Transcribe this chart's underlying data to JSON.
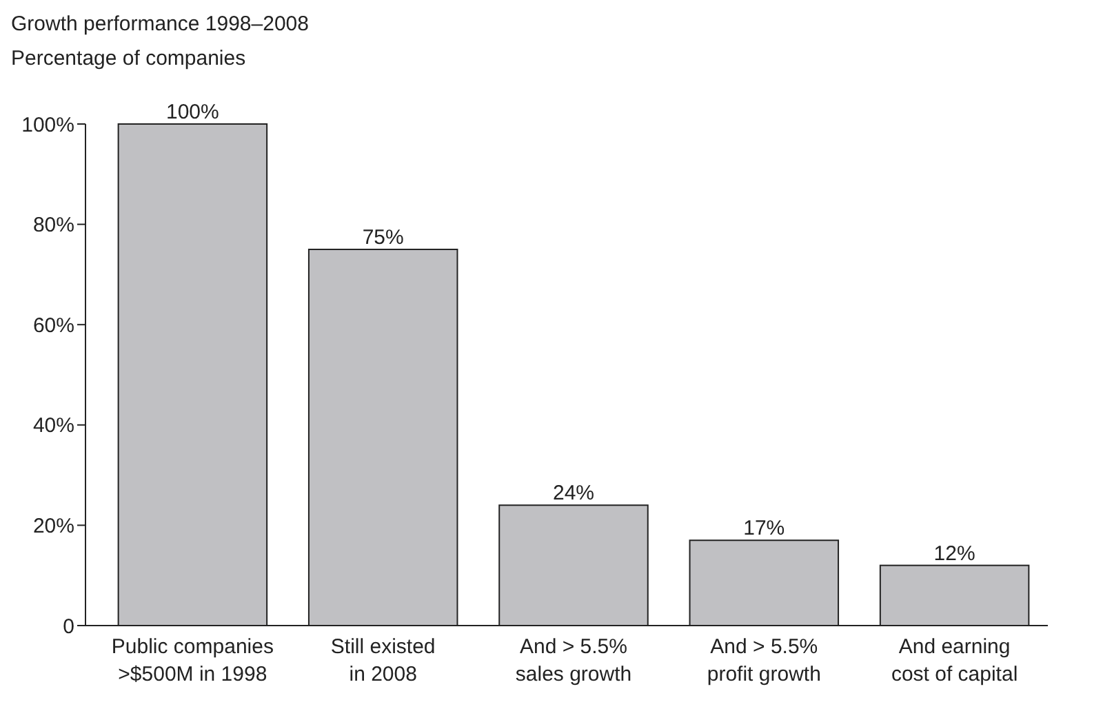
{
  "chart_data": {
    "type": "bar",
    "title": "Growth performance 1998–2008",
    "subtitle": "Percentage of companies",
    "categories": [
      "Public companies\n>$500M in 1998",
      "Still existed\nin 2008",
      "And > 5.5%\nsales growth",
      "And > 5.5%\nprofit growth",
      "And earning\ncost of capital"
    ],
    "values": [
      100,
      75,
      24,
      17,
      12
    ],
    "value_labels": [
      "100%",
      "75%",
      "24%",
      "17%",
      "12%"
    ],
    "color": "#c0c0c3",
    "ylim": [
      0,
      100
    ],
    "yticks": [
      0,
      {
        "value": 20,
        "label": "20%"
      },
      {
        "value": 40,
        "label": "40%"
      },
      {
        "value": 60,
        "label": "60%"
      },
      {
        "value": 80,
        "label": "80%"
      },
      {
        "value": 100,
        "label": "100%"
      }
    ],
    "grid": false
  }
}
